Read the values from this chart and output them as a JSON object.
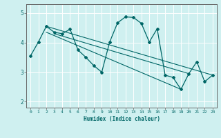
{
  "xlabel": "Humidex (Indice chaleur)",
  "bg_color": "#cff0f0",
  "line_color": "#006666",
  "grid_color": "#ffffff",
  "grid_major_color": "#aadddd",
  "xlim": [
    -0.5,
    23.5
  ],
  "ylim": [
    1.8,
    5.3
  ],
  "yticks": [
    2,
    3,
    4,
    5
  ],
  "xticks": [
    0,
    1,
    2,
    3,
    4,
    5,
    6,
    7,
    8,
    9,
    10,
    11,
    12,
    13,
    14,
    15,
    16,
    17,
    18,
    19,
    20,
    21,
    22,
    23
  ],
  "series": [
    [
      0,
      3.55
    ],
    [
      1,
      4.02
    ],
    [
      2,
      4.55
    ],
    [
      3,
      4.35
    ],
    [
      4,
      4.3
    ],
    [
      5,
      4.45
    ],
    [
      6,
      3.75
    ],
    [
      7,
      3.5
    ],
    [
      8,
      3.22
    ],
    [
      9,
      3.0
    ],
    [
      10,
      4.02
    ],
    [
      11,
      4.67
    ],
    [
      12,
      4.87
    ],
    [
      13,
      4.85
    ],
    [
      14,
      4.65
    ],
    [
      15,
      4.02
    ],
    [
      16,
      4.47
    ],
    [
      17,
      2.9
    ],
    [
      18,
      2.82
    ],
    [
      19,
      2.42
    ],
    [
      20,
      2.95
    ],
    [
      21,
      3.35
    ],
    [
      22,
      2.68
    ],
    [
      23,
      2.9
    ]
  ],
  "regression_lines": [
    {
      "x": [
        2,
        23
      ],
      "y": [
        4.55,
        2.9
      ]
    },
    {
      "x": [
        2,
        19
      ],
      "y": [
        4.35,
        2.42
      ]
    },
    {
      "x": [
        3,
        20
      ],
      "y": [
        4.3,
        2.95
      ]
    }
  ]
}
